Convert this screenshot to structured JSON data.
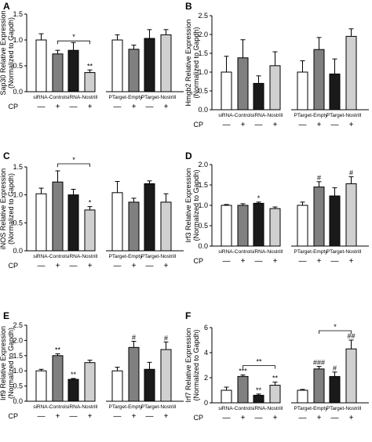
{
  "figure": {
    "cp_label": "CP",
    "cp_marks": [
      "—",
      "+",
      "—",
      "+",
      "—",
      "+",
      "—",
      "+"
    ],
    "bar_colors": [
      "#ffffff",
      "#808080",
      "#1a1a1a",
      "#d0d0d0",
      "#ffffff",
      "#808080",
      "#1a1a1a",
      "#d0d0d0"
    ]
  },
  "chart_data": [
    {
      "panel": "A",
      "type": "bar",
      "ylabel": "Sap30 Relative Expression",
      "ylabel2": "(Normalized to Gapdh)",
      "ylim": [
        0,
        1.5
      ],
      "yticks": [
        "0.0",
        "0.5",
        "1.0",
        "1.5"
      ],
      "groups": [
        "siRNA-Control",
        "siRNA-Nostrill",
        "PTarget-Empty",
        "PTarget-Nostrill"
      ],
      "values": [
        1.0,
        0.73,
        0.8,
        0.37,
        1.0,
        0.82,
        1.03,
        1.1
      ],
      "errors": [
        0.12,
        0.07,
        0.15,
        0.05,
        0.1,
        0.08,
        0.17,
        0.1
      ],
      "marks": [
        "",
        "",
        "",
        "**",
        "",
        "",
        "",
        ""
      ],
      "brackets": [
        {
          "from": 1,
          "to": 3,
          "label": "*"
        }
      ]
    },
    {
      "panel": "B",
      "type": "bar",
      "ylabel": "Hmgb2 Relative Expression",
      "ylabel2": "(Normalized to Gapdh)",
      "ylim": [
        0,
        2.5
      ],
      "yticks": [
        "0.0",
        "0.5",
        "1.0",
        "1.5",
        "2.0",
        "2.5"
      ],
      "groups": [
        "siRNA-Control",
        "siRNA-Nostrill",
        "PTarget-Empty",
        "PTarget-Nostrill"
      ],
      "values": [
        1.0,
        1.38,
        0.7,
        1.17,
        1.0,
        1.6,
        0.95,
        1.95
      ],
      "errors": [
        0.42,
        0.48,
        0.2,
        0.37,
        0.3,
        0.32,
        0.4,
        0.2
      ],
      "marks": [
        "",
        "",
        "",
        "",
        "",
        "",
        "",
        ""
      ],
      "brackets": []
    },
    {
      "panel": "C",
      "type": "bar",
      "ylabel": "iNOS Relative Expression",
      "ylabel2": "(Normalized to Gapdh)",
      "ylim": [
        0,
        1.5
      ],
      "yticks": [
        "0.0",
        "0.5",
        "1.0",
        "1.5"
      ],
      "groups": [
        "siRNA-Control",
        "siRNA-Nostrill",
        "PTarget-Empty",
        "PTarget-Nostrill"
      ],
      "values": [
        1.02,
        1.23,
        1.0,
        0.73,
        1.04,
        0.87,
        1.2,
        0.87
      ],
      "errors": [
        0.1,
        0.2,
        0.1,
        0.06,
        0.2,
        0.07,
        0.05,
        0.15
      ],
      "marks": [
        "",
        "",
        "",
        "*",
        "",
        "",
        "",
        ""
      ],
      "brackets": [
        {
          "from": 1,
          "to": 3,
          "label": "*"
        }
      ]
    },
    {
      "panel": "D",
      "type": "bar",
      "ylabel": "Irf3 Relative Expression",
      "ylabel2": "(Normalized to Gapdh)",
      "ylim": [
        0,
        2.0
      ],
      "yticks": [
        "0.0",
        "0.5",
        "1.0",
        "1.5",
        "2.0"
      ],
      "groups": [
        "siRNA-Control",
        "siRNA-Nostrill",
        "PTarget-Empty",
        "PTarget-Nostrill"
      ],
      "values": [
        1.0,
        1.0,
        1.05,
        0.92,
        1.0,
        1.45,
        1.23,
        1.53
      ],
      "errors": [
        0.02,
        0.04,
        0.03,
        0.04,
        0.08,
        0.13,
        0.2,
        0.17
      ],
      "marks": [
        "",
        "",
        "*",
        "",
        "",
        "#",
        "",
        "#"
      ],
      "brackets": []
    },
    {
      "panel": "E",
      "type": "bar",
      "ylabel": "Irf9 Relative Expression",
      "ylabel2": "(Normalized to Gapdh)",
      "ylim": [
        0,
        2.5
      ],
      "yticks": [
        "0.0",
        "0.5",
        "1.0",
        "1.5",
        "2.0",
        "2.5"
      ],
      "groups": [
        "siRNA-Control",
        "siRNA-Nostrill",
        "PTarget-Empty",
        "PTarget-Nostrill"
      ],
      "values": [
        1.0,
        1.5,
        0.72,
        1.27,
        1.0,
        1.77,
        1.05,
        1.7
      ],
      "errors": [
        0.05,
        0.06,
        0.03,
        0.08,
        0.12,
        0.2,
        0.23,
        0.25
      ],
      "marks": [
        "",
        "**",
        "**",
        "",
        "",
        "#",
        "",
        "#"
      ],
      "brackets": []
    },
    {
      "panel": "F",
      "type": "bar",
      "ylabel": "Irf7 Relative Expression",
      "ylabel2": "(Normalized to Gapdh)",
      "ylim": [
        0,
        6
      ],
      "yticks": [
        "0",
        "2",
        "4",
        "6"
      ],
      "groups": [
        "siRNA-Control",
        "siRNA-Nostrill",
        "PTarget-Empty",
        "PTarget-Nostrill"
      ],
      "values": [
        1.0,
        2.1,
        0.6,
        1.4,
        1.0,
        2.7,
        2.1,
        4.3
      ],
      "errors": [
        0.25,
        0.12,
        0.1,
        0.25,
        0.07,
        0.2,
        0.35,
        0.7
      ],
      "marks": [
        "",
        "***",
        "**",
        "**",
        "",
        "###",
        "#",
        "##"
      ],
      "brackets": [
        {
          "from": 1,
          "to": 3,
          "label": "**"
        },
        {
          "from": 5,
          "to": 7,
          "label": "*"
        }
      ]
    }
  ]
}
